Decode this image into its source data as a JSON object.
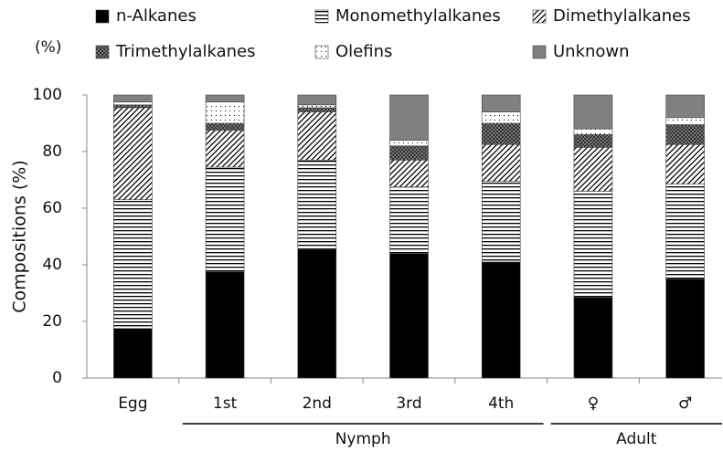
{
  "chart_data": {
    "type": "stacked-bar",
    "y_unit_label": "(%)",
    "ylabel": "Compositions (%)",
    "categories": [
      "Egg",
      "1st",
      "2nd",
      "3rd",
      "4th",
      "♀",
      "♂"
    ],
    "groups": [
      "Nymph",
      "Adult"
    ],
    "ylim": [
      0,
      100
    ],
    "yticks": [
      0,
      20,
      40,
      60,
      80,
      100
    ],
    "series": [
      {
        "name": "n-Alkanes",
        "color": "#000000",
        "pattern": "solid",
        "values": [
          17.5,
          37.5,
          45.5,
          44,
          41,
          28.5,
          35
        ]
      },
      {
        "name": "Monomethylalkanes",
        "color": "#000000",
        "pattern": "horizontal",
        "values": [
          45.5,
          37,
          31.5,
          23.5,
          28.5,
          37.5,
          33.5
        ]
      },
      {
        "name": "Dimethylalkanes",
        "color": "#000000",
        "pattern": "diagonal",
        "values": [
          32.5,
          13,
          17,
          9.5,
          13,
          15.5,
          14
        ]
      },
      {
        "name": "Trimethylalkanes",
        "color": "#333333",
        "pattern": "crosshatch",
        "values": [
          1,
          2.5,
          1.5,
          5,
          7.5,
          4.5,
          7
        ]
      },
      {
        "name": "Olefins",
        "color": "#000000",
        "pattern": "dots",
        "values": [
          1,
          7.5,
          1,
          2,
          4,
          2,
          2.5
        ]
      },
      {
        "name": "Unknown",
        "color": "#808080",
        "pattern": "solid",
        "values": [
          2.5,
          2.5,
          3.5,
          16,
          6,
          12,
          8
        ]
      }
    ]
  }
}
